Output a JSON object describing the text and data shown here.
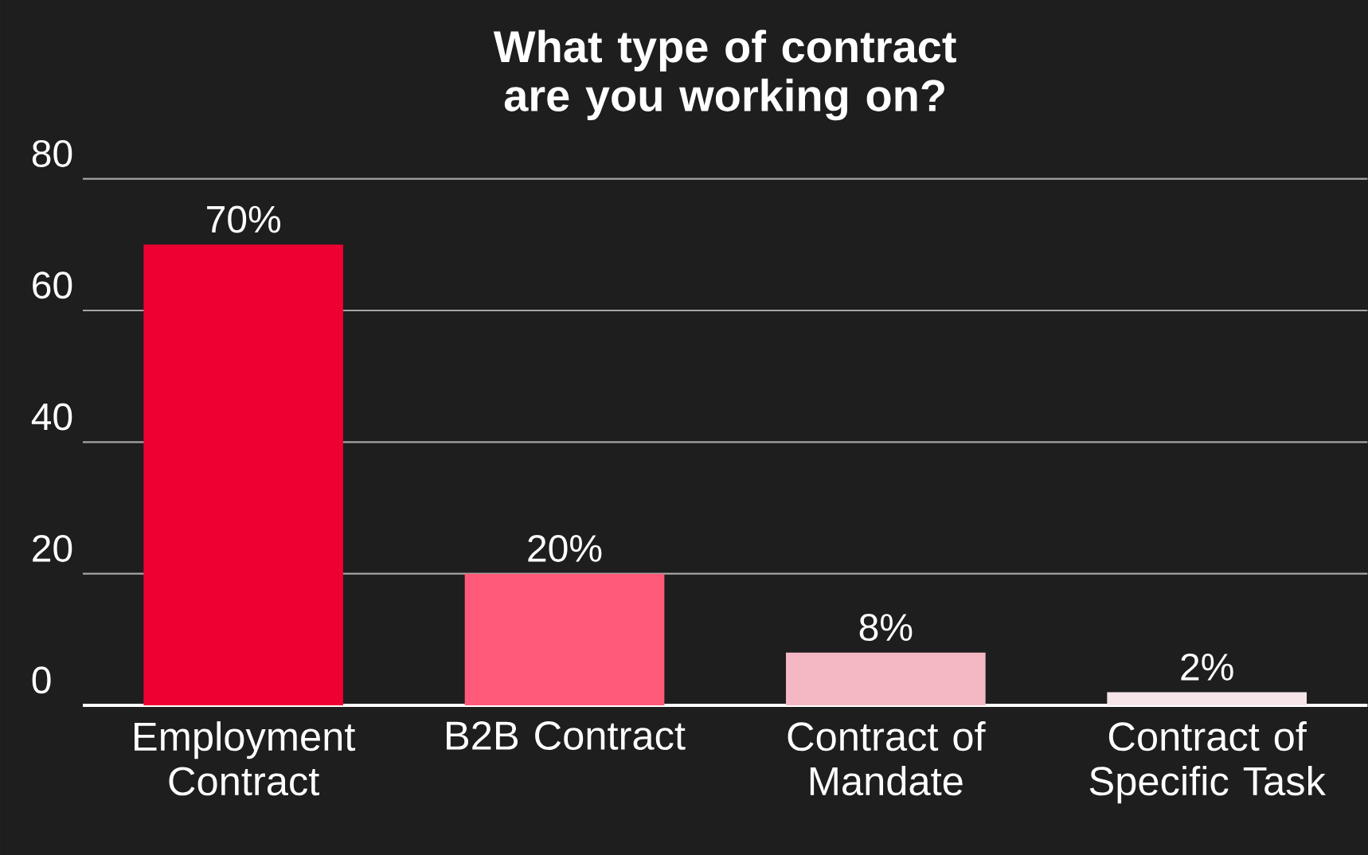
{
  "chart_data": {
    "type": "bar",
    "title": "What type of contract are you working on?",
    "categories": [
      "Employment Contract",
      "B2B Contract",
      "Contract of Mandate",
      "Contract of Specific Task"
    ],
    "values": [
      70,
      20,
      8,
      2
    ],
    "value_labels": [
      "70%",
      "20%",
      "8%",
      "2%"
    ],
    "colors": [
      "#ee0033",
      "#ff5a7a",
      "#f4b8c4",
      "#f6e4e8"
    ],
    "ylim": [
      0,
      80
    ],
    "yticks": [
      0,
      20,
      40,
      60,
      80
    ],
    "grid": "y"
  }
}
